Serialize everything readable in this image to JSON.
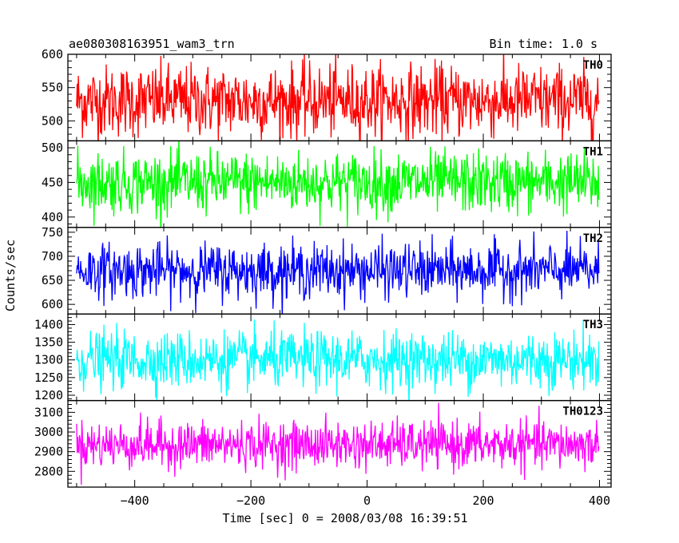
{
  "header": {
    "left_title": "ae080308163951_wam3_trn",
    "right_title": "Bin time: 1.0 s"
  },
  "chart_data": {
    "type": "line",
    "xlabel": "Time [sec] 0 = 2008/03/08 16:39:51",
    "ylabel": "Counts/sec",
    "xlim": [
      -515,
      420
    ],
    "xticks": [
      -400,
      -200,
      0,
      200,
      400
    ],
    "x_start": -500,
    "x_end": 399,
    "bin_time_s": 1.0,
    "panels": [
      {
        "name": "TH0",
        "color": "#ff0000",
        "ylim": [
          470,
          600
        ],
        "yticks": [
          500,
          550,
          600
        ],
        "mean": 530,
        "amplitude": 27
      },
      {
        "name": "TH1",
        "color": "#00ff00",
        "ylim": [
          385,
          510
        ],
        "yticks": [
          400,
          450,
          500
        ],
        "mean": 450,
        "amplitude": 22
      },
      {
        "name": "TH2",
        "color": "#0000ff",
        "ylim": [
          580,
          760
        ],
        "yticks": [
          600,
          650,
          700,
          750
        ],
        "mean": 670,
        "amplitude": 28
      },
      {
        "name": "TH3",
        "color": "#00ffff",
        "ylim": [
          1185,
          1430
        ],
        "yticks": [
          1200,
          1250,
          1300,
          1350,
          1400
        ],
        "mean": 1300,
        "amplitude": 40
      },
      {
        "name": "TH0123",
        "color": "#ff00ff",
        "ylim": [
          2720,
          3160
        ],
        "yticks": [
          2800,
          2900,
          3000,
          3100
        ],
        "mean": 2935,
        "amplitude": 60
      }
    ]
  }
}
